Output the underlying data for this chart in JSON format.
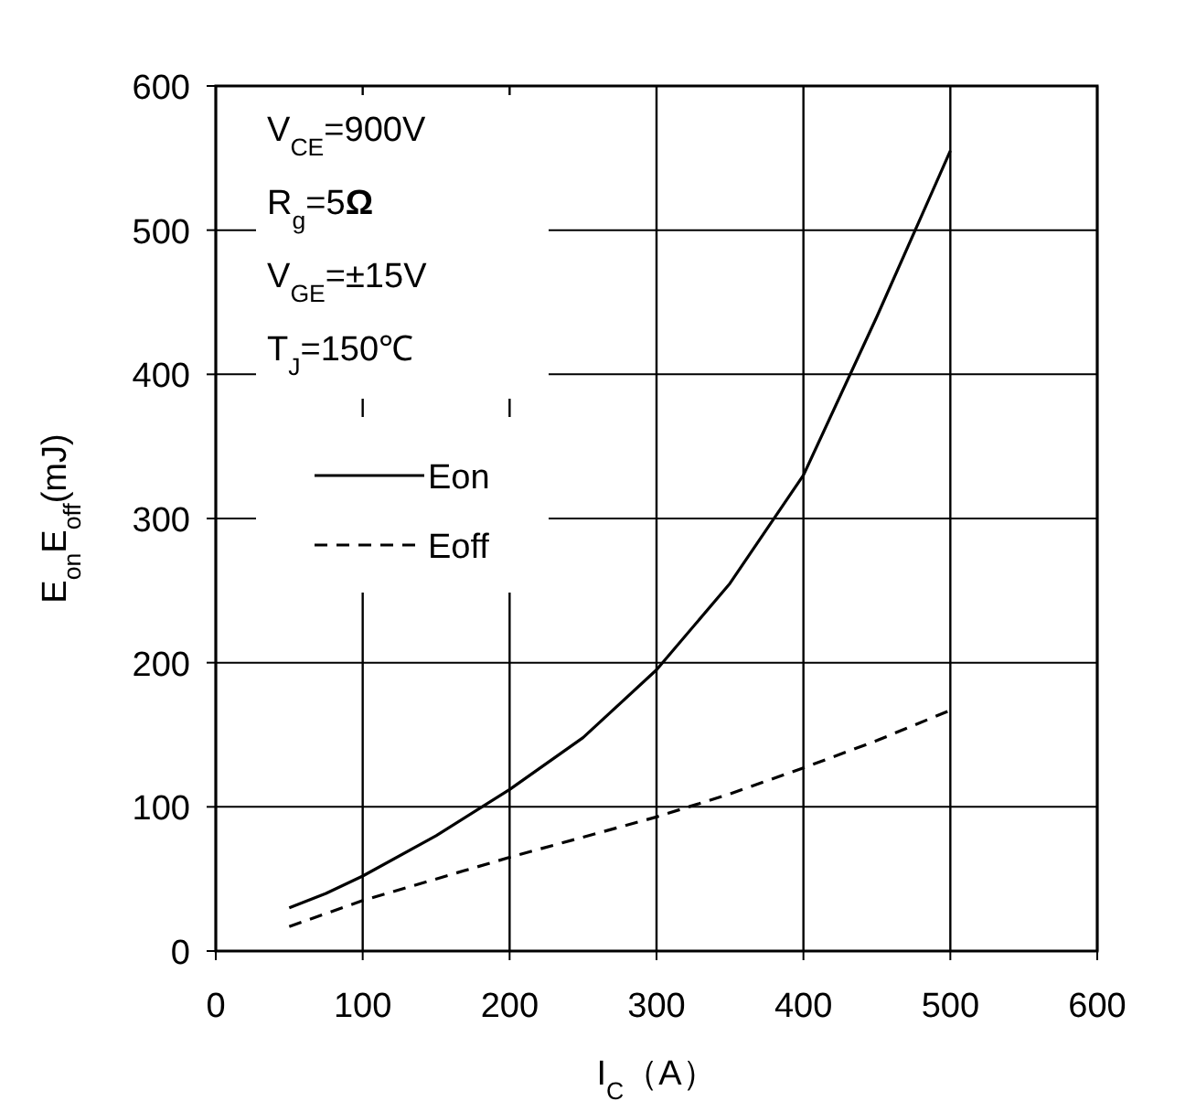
{
  "chart_data": {
    "type": "line",
    "xlabel": "I$_{C}$（A）",
    "ylabel": "E$_{on}$E$_{off}$(mJ)",
    "xlim": [
      0,
      600
    ],
    "ylim": [
      0,
      600
    ],
    "xticks": [
      0,
      100,
      200,
      300,
      400,
      500,
      600
    ],
    "yticks": [
      0,
      100,
      200,
      300,
      400,
      500,
      600
    ],
    "grid": true,
    "legend": "left",
    "marker": "none",
    "annotations": [
      "V$_{CE}$=900V",
      "R$_{g}$=5**Ω**",
      "V$_{GE}$=±15V",
      "T$_{J}$=150℃"
    ],
    "series": [
      {
        "name": "Eon",
        "color": "#000000",
        "line_style": "solid",
        "x": [
          50,
          75,
          100,
          150,
          200,
          250,
          300,
          350,
          400,
          450,
          500
        ],
        "values": [
          30,
          40,
          52,
          80,
          112,
          148,
          195,
          255,
          330,
          440,
          555
        ]
      },
      {
        "name": "Eoff",
        "color": "#000000",
        "line_style": "dashed",
        "x": [
          50,
          100,
          150,
          200,
          250,
          300,
          350,
          400,
          450,
          500
        ],
        "values": [
          17,
          35,
          50,
          65,
          79,
          93,
          109,
          127,
          146,
          167
        ]
      }
    ]
  }
}
